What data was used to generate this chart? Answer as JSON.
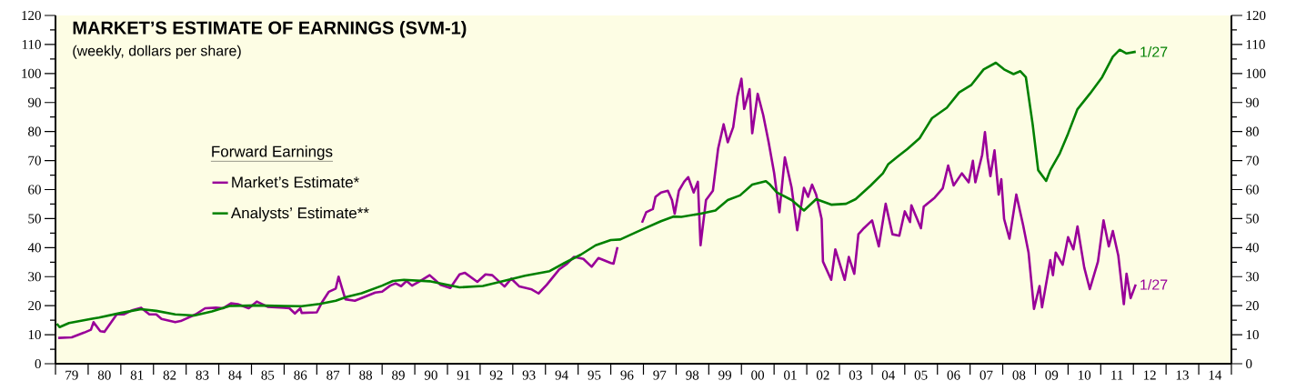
{
  "chart_data": {
    "type": "line",
    "title": "MARKET’S ESTIMATE OF EARNINGS (SVM-1)",
    "subtitle": "(weekly, dollars per share)",
    "legend_title": "Forward Earnings",
    "legend": "left",
    "xlim": [
      "1979",
      "2015"
    ],
    "ylim": [
      0,
      120
    ],
    "y2lim": [
      0,
      120
    ],
    "xticks": [
      {
        "value": "1979",
        "label": null
      },
      {
        "value": "1980",
        "label": null
      },
      {
        "value": "1981",
        "label": null
      },
      {
        "value": "1982",
        "label": null
      },
      {
        "value": "1983",
        "label": null
      },
      {
        "value": "1984",
        "label": null
      },
      {
        "value": "1985",
        "label": null
      },
      {
        "value": "1986",
        "label": null
      },
      {
        "value": "1987",
        "label": null
      },
      {
        "value": "1988",
        "label": null
      },
      {
        "value": "1989",
        "label": null
      },
      {
        "value": "1990",
        "label": null
      },
      {
        "value": "1991",
        "label": null
      },
      {
        "value": "1992",
        "label": null
      },
      {
        "value": "1993",
        "label": null
      },
      {
        "value": "1994",
        "label": null
      },
      {
        "value": "1995",
        "label": null
      },
      {
        "value": "1996",
        "label": null
      },
      {
        "value": "1997",
        "label": null
      },
      {
        "value": "1998",
        "label": null
      },
      {
        "value": "1999",
        "label": null
      },
      {
        "value": "2000",
        "label": null
      },
      {
        "value": "2001",
        "label": null
      },
      {
        "value": "2002",
        "label": null
      },
      {
        "value": "2003",
        "label": null
      },
      {
        "value": "2004",
        "label": null
      },
      {
        "value": "2005",
        "label": null
      },
      {
        "value": "2006",
        "label": null
      },
      {
        "value": "2007",
        "label": null
      },
      {
        "value": "2008",
        "label": null
      },
      {
        "value": "2009",
        "label": null
      },
      {
        "value": "2010",
        "label": null
      },
      {
        "value": "2011",
        "label": null
      },
      {
        "value": "2012",
        "label": null
      },
      {
        "value": "2013",
        "label": null
      },
      {
        "value": "2014",
        "label": null
      },
      {
        "value": "2015",
        "label": null
      },
      {
        "value": "1979-07-01",
        "label": "79"
      },
      {
        "value": "1980-07-01",
        "label": "80"
      },
      {
        "value": "1981-07-01",
        "label": "81"
      },
      {
        "value": "1982-07-01",
        "label": "82"
      },
      {
        "value": "1983-07-01",
        "label": "83"
      },
      {
        "value": "1984-07-01",
        "label": "84"
      },
      {
        "value": "1985-07-01",
        "label": "85"
      },
      {
        "value": "1986-07-01",
        "label": "86"
      },
      {
        "value": "1987-07-01",
        "label": "87"
      },
      {
        "value": "1988-07-01",
        "label": "88"
      },
      {
        "value": "1989-07-01",
        "label": "89"
      },
      {
        "value": "1990-07-01",
        "label": "90"
      },
      {
        "value": "1991-07-01",
        "label": "91"
      },
      {
        "value": "1992-07-01",
        "label": "92"
      },
      {
        "value": "1993-07-01",
        "label": "93"
      },
      {
        "value": "1994-07-01",
        "label": "94"
      },
      {
        "value": "1995-07-01",
        "label": "95"
      },
      {
        "value": "1996-07-01",
        "label": "96"
      },
      {
        "value": "1997-07-01",
        "label": "97"
      },
      {
        "value": "1998-07-01",
        "label": "98"
      },
      {
        "value": "1999-07-01",
        "label": "99"
      },
      {
        "value": "2000-07-01",
        "label": "00"
      },
      {
        "value": "2001-07-01",
        "label": "01"
      },
      {
        "value": "2002-07-01",
        "label": "02"
      },
      {
        "value": "2003-07-01",
        "label": "03"
      },
      {
        "value": "2004-07-01",
        "label": "04"
      },
      {
        "value": "2005-07-01",
        "label": "05"
      },
      {
        "value": "2006-07-01",
        "label": "06"
      },
      {
        "value": "2007-07-01",
        "label": "07"
      },
      {
        "value": "2008-07-01",
        "label": "08"
      },
      {
        "value": "2009-07-01",
        "label": "09"
      },
      {
        "value": "2010-07-01",
        "label": "10"
      },
      {
        "value": "2011-07-01",
        "label": "11"
      },
      {
        "value": "2012-07-01",
        "label": "12"
      },
      {
        "value": "2013-07-01",
        "label": "13"
      },
      {
        "value": "2014-07-01",
        "label": "14"
      }
    ],
    "yticks": [
      0,
      {
        "value": 5,
        "label": null
      },
      10,
      {
        "value": 15,
        "label": null
      },
      20,
      {
        "value": 25,
        "label": null
      },
      30,
      {
        "value": 35,
        "label": null
      },
      40,
      {
        "value": 45,
        "label": null
      },
      50,
      {
        "value": 55,
        "label": null
      },
      60,
      {
        "value": 65,
        "label": null
      },
      70,
      {
        "value": 75,
        "label": null
      },
      80,
      {
        "value": 85,
        "label": null
      },
      90,
      {
        "value": 95,
        "label": null
      },
      100,
      {
        "value": 105,
        "label": null
      },
      110,
      {
        "value": 115,
        "label": null
      },
      120
    ],
    "y2ticks": [
      0,
      {
        "value": 5,
        "label": null
      },
      10,
      {
        "value": 15,
        "label": null
      },
      20,
      {
        "value": 25,
        "label": null
      },
      30,
      {
        "value": 35,
        "label": null
      },
      40,
      {
        "value": 45,
        "label": null
      },
      50,
      {
        "value": 55,
        "label": null
      },
      60,
      {
        "value": 65,
        "label": null
      },
      70,
      {
        "value": 75,
        "label": null
      },
      80,
      {
        "value": 85,
        "label": null
      },
      90,
      {
        "value": 95,
        "label": null
      },
      100,
      {
        "value": 105,
        "label": null
      },
      110,
      {
        "value": 115,
        "label": null
      },
      120
    ],
    "series": [
      {
        "name": "Market’s Estimate*",
        "color": "#990099",
        "x": [
          "1979-02-01",
          "1979-07-01",
          "1979-11-16",
          "1980-02-01",
          "1980-03-01",
          "1980-05-16",
          "1980-07-01",
          "1980-11-16",
          "1981-02-01",
          "1981-05-16",
          "1981-08-16",
          "1981-11-16",
          "1982-02-01",
          "1982-04-01",
          "1982-09-01",
          "1982-11-01",
          "1983-04-16",
          "1983-08-01",
          "1983-12-01",
          "1984-02-16",
          "1984-05-16",
          "1984-08-01",
          "1984-12-01",
          "1985-03-01",
          "1985-07-01",
          "1986-01-01",
          "1986-03-01",
          "1986-05-01",
          "1986-07-01",
          "1986-07-16",
          "1987-01-01",
          "1987-03-01",
          "1987-05-16",
          "1987-08-01",
          "1987-09-01",
          "1987-11-16",
          "1988-03-01",
          "1988-07-01",
          "1988-10-16",
          "1989-01-01",
          "1989-04-01",
          "1989-06-01",
          "1989-08-01",
          "1989-10-01",
          "1989-12-01",
          "1990-03-01",
          "1990-06-16",
          "1990-10-16",
          "1991-02-01",
          "1991-05-16",
          "1991-07-16",
          "1991-12-01",
          "1992-03-01",
          "1992-05-16",
          "1992-10-01",
          "1992-12-16",
          "1993-03-16",
          "1993-08-01",
          "1993-10-16",
          "1994-01-16",
          "1994-06-01",
          "1994-09-01",
          "1994-11-16",
          "1995-03-01",
          "1995-06-01",
          "1995-08-16",
          "1996-01-01",
          "1996-02-01",
          "1996-03-16",
          "1996-08-01",
          "1996-12-16",
          "1997-02-01",
          "1997-04-16",
          "1997-05-16",
          "1997-07-16",
          "1997-10-01",
          "1997-11-16",
          "1997-12-16",
          "1998-02-01",
          "1998-04-01",
          "1998-05-16",
          "1998-07-16",
          "1998-09-01",
          "1998-10-01",
          "1998-12-01",
          "1999-02-16",
          "1999-04-16",
          "1999-06-16",
          "1999-08-01",
          "1999-10-01",
          "1999-11-16",
          "2000-01-01",
          "2000-02-01",
          "2000-04-01",
          "2000-05-01",
          "2000-07-01",
          "2000-09-01",
          "2000-11-01",
          "2001-01-01",
          "2001-03-01",
          "2001-05-01",
          "2001-07-16",
          "2001-09-16",
          "2001-12-01",
          "2002-01-16",
          "2002-03-01",
          "2002-04-16",
          "2002-06-16",
          "2002-07-01",
          "2002-10-01",
          "2002-11-16",
          "2003-03-01",
          "2003-04-16",
          "2003-06-16",
          "2003-08-01",
          "2003-10-01",
          "2004-01-01",
          "2004-03-16",
          "2004-06-01",
          "2004-08-16",
          "2004-11-01",
          "2005-01-01",
          "2005-03-01",
          "2005-03-16",
          "2005-07-01",
          "2005-08-01",
          "2005-12-01",
          "2006-03-01",
          "2006-05-01",
          "2006-07-01",
          "2006-10-01",
          "2006-12-16",
          "2007-02-01",
          "2007-03-01",
          "2007-05-16",
          "2007-06-16",
          "2007-07-16",
          "2007-08-16",
          "2007-10-01",
          "2007-11-16",
          "2007-12-16",
          "2008-01-16",
          "2008-03-16",
          "2008-06-01",
          "2008-08-16",
          "2008-10-16",
          "2008-12-16",
          "2009-02-16",
          "2009-03-16",
          "2009-06-16",
          "2009-07-16",
          "2009-08-16",
          "2009-11-01",
          "2010-01-01",
          "2010-03-01",
          "2010-04-16",
          "2010-07-01",
          "2010-09-01",
          "2010-12-01",
          "2011-02-01",
          "2011-04-01",
          "2011-05-16",
          "2011-07-16",
          "2011-09-16",
          "2011-10-16",
          "2011-12-01",
          "2012-01-27"
        ],
        "values": [
          8.9,
          9.1,
          10.7,
          11.7,
          14.3,
          11.2,
          11,
          17,
          17,
          18.5,
          19.3,
          17,
          17,
          15.4,
          14.3,
          14.7,
          17,
          19.1,
          19.3,
          19.1,
          20.8,
          20.5,
          19.1,
          21.4,
          19.6,
          19.3,
          19.1,
          17.3,
          19.1,
          17.5,
          17.7,
          21.2,
          24.8,
          25.9,
          30,
          22.2,
          21.7,
          23.2,
          24.5,
          24.8,
          26.9,
          27.7,
          26.7,
          28.5,
          26.9,
          28.5,
          30.5,
          27.2,
          26.1,
          30.8,
          31.3,
          28.2,
          30.8,
          30.5,
          26.6,
          29.3,
          26.6,
          25.6,
          24.2,
          27.2,
          32.4,
          34.5,
          36.8,
          36.1,
          33.4,
          36.4,
          34.7,
          34.5,
          40.2,
          null,
          48.6,
          52.2,
          53.3,
          57.5,
          59,
          59.6,
          56.4,
          51.7,
          59.6,
          62.7,
          64.3,
          59,
          62.7,
          40.8,
          56.4,
          59.6,
          74.2,
          82.5,
          76.3,
          81.5,
          92,
          98.2,
          87.8,
          94.6,
          79.4,
          93,
          85.7,
          76.3,
          65.8,
          52.2,
          71.1,
          60.6,
          46,
          60.6,
          57.5,
          61.7,
          58.3,
          49.9,
          35.2,
          28.9,
          39.4,
          28.9,
          36.8,
          31,
          44.6,
          46.7,
          49.4,
          40.4,
          55.1,
          44.6,
          44.1,
          52.5,
          48.8,
          54.6,
          46.7,
          54.1,
          57.2,
          60.4,
          68.3,
          61.4,
          65.6,
          62.5,
          69.9,
          62.5,
          72,
          79.8,
          70.9,
          64.6,
          73.5,
          58.3,
          63.6,
          49.9,
          43.1,
          58.3,
          47.8,
          38.3,
          18.9,
          26.8,
          19.4,
          35.7,
          30.5,
          38.3,
          34.1,
          43.6,
          39.4,
          47.3,
          33.1,
          25.7,
          35.2,
          49.4,
          40.4,
          45.7,
          37.3,
          20.5,
          31,
          22.6,
          27.3
        ]
      },
      {
        "name": "Analysts’ Estimate**",
        "color": "#008000",
        "x": [
          "1979-01-16",
          "1979-02-16",
          "1979-06-01",
          "1980-02-01",
          "1980-05-01",
          "1981-01-01",
          "1981-08-16",
          "1982-02-01",
          "1982-09-01",
          "1983-04-01",
          "1983-10-16",
          "1984-05-01",
          "1985-03-01",
          "1986-01-01",
          "1986-07-16",
          "1987-02-01",
          "1987-08-01",
          "1987-12-01",
          "1988-05-16",
          "1989-01-01",
          "1989-05-01",
          "1989-09-01",
          "1990-06-16",
          "1991-05-16",
          "1992-02-01",
          "1992-10-01",
          "1993-05-16",
          "1994-02-16",
          "1994-08-01",
          "1995-02-01",
          "1995-07-16",
          "1996-01-01",
          "1996-04-16",
          "1996-12-01",
          "1997-07-16",
          "1997-12-01",
          "1998-03-01",
          "1998-10-01",
          "1999-03-16",
          "1999-08-01",
          "1999-12-16",
          "2000-05-01",
          "2000-10-01",
          "2000-11-16",
          "2001-02-01",
          "2001-07-16",
          "2001-12-01",
          "2002-04-16",
          "2002-10-01",
          "2003-03-16",
          "2003-07-01",
          "2003-12-16",
          "2004-05-01",
          "2004-07-01",
          "2004-10-16",
          "2005-02-01",
          "2005-06-16",
          "2005-11-01",
          "2006-04-16",
          "2006-09-01",
          "2007-01-16",
          "2007-06-01",
          "2007-10-16",
          "2008-01-16",
          "2008-05-01",
          "2008-07-16",
          "2008-09-16",
          "2008-12-01",
          "2009-02-01",
          "2009-05-01",
          "2009-06-16",
          "2009-10-01",
          "2010-01-01",
          "2010-04-16",
          "2010-09-01",
          "2011-01-16",
          "2011-05-16",
          "2011-08-01",
          "2011-10-16",
          "2012-01-27"
        ],
        "values": [
          13.8,
          12.6,
          14,
          15.4,
          15.9,
          17.5,
          18.8,
          18.2,
          17,
          16.6,
          18,
          19.9,
          20.1,
          19.9,
          19.8,
          20.6,
          21.7,
          23,
          24.3,
          26.9,
          28.5,
          28.9,
          28.4,
          26.3,
          26.8,
          28.6,
          30.3,
          31.9,
          34.7,
          37.6,
          40.8,
          42.6,
          42.8,
          46,
          49.1,
          50.7,
          50.6,
          51.7,
          52.8,
          56.4,
          58,
          61.7,
          62.9,
          61.7,
          59,
          56.4,
          52.8,
          56.7,
          54.8,
          55.1,
          56.7,
          61.4,
          65.6,
          68.8,
          71.4,
          74,
          77.7,
          84.6,
          88.2,
          93.5,
          96.1,
          101.4,
          103.7,
          101.4,
          99.8,
          100.8,
          98.7,
          82.5,
          66.7,
          63,
          66.7,
          72.5,
          79.3,
          87.7,
          93,
          98.7,
          105.8,
          108.2,
          106.9,
          107.5
        ]
      }
    ],
    "annotations": [
      {
        "text": "1/27",
        "x": "2012-01-27",
        "y": 27.3
      },
      {
        "text": "1/27",
        "x": "2012-01-27",
        "y": 107.5
      }
    ]
  }
}
